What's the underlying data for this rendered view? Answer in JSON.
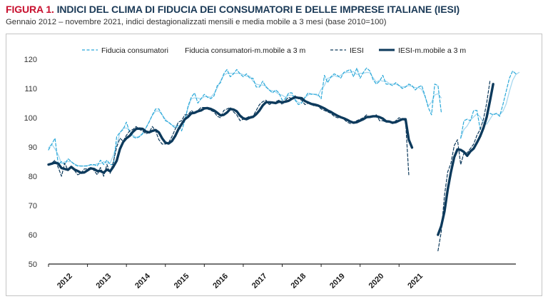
{
  "heading": {
    "figure_label": "FIGURA 1.",
    "title": "INDICI DEL CLIMA DI FIDUCIA DEI CONSUMATORI E DELLE IMPRESE ITALIANE (IESI)",
    "subtitle": "Gennaio 2012 – novembre 2021, indici destagionalizzati mensili e media mobile a 3 mesi (base 2010=100)"
  },
  "colors": {
    "title_red": "#c8102e",
    "title_blue": "#1b3a57",
    "consumers": "#29a8d9",
    "iesi": "#0d3a5c"
  },
  "chart_data": {
    "type": "line",
    "title": "INDICI DEL CLIMA DI FIDUCIA DEI CONSUMATORI E DELLE IMPRESE ITALIANE (IESI)",
    "ylim": [
      50,
      120
    ],
    "yticks": [
      50,
      60,
      70,
      80,
      90,
      100,
      110,
      120
    ],
    "year_labels": [
      "2012",
      "2013",
      "2014",
      "2015",
      "2016",
      "2017",
      "2018",
      "2019",
      "2020",
      "2021"
    ],
    "x_start": "2012-01",
    "x_end": "2021-11",
    "grid": false,
    "legend_position": "top",
    "series": [
      {
        "name": "Fiducia consumatori",
        "style": "dashed",
        "color": "#29a8d9",
        "values": [
          89,
          91,
          93,
          84,
          85,
          84,
          86,
          85,
          84,
          83.5,
          83.5,
          83.5,
          83.5,
          84,
          84,
          83.5,
          85.5,
          84,
          85.5,
          84,
          84,
          93.5,
          95,
          96,
          98.5,
          95,
          93.5,
          93,
          93.5,
          94.5,
          96.5,
          98.5,
          101,
          103,
          103,
          101,
          99,
          98.5,
          97.5,
          96.5,
          97.5,
          95.5,
          99,
          104,
          107,
          108.5,
          105,
          106.5,
          108,
          107,
          106.5,
          107.5,
          111,
          112,
          115,
          116.5,
          114,
          115,
          116.5,
          115,
          114,
          115,
          113.5,
          113.5,
          110.5,
          110.5,
          112.5,
          110.5,
          109.5,
          108.5,
          109.5,
          108.5,
          106,
          106.5,
          108.5,
          108.5,
          106,
          104.5,
          105,
          107,
          108.5,
          108,
          108,
          108,
          106.5,
          114.5,
          112,
          114,
          115,
          114.5,
          113.5,
          115.5,
          116,
          116.5,
          114,
          117,
          113.5,
          115.5,
          117,
          116,
          113,
          111.5,
          112.5,
          114.5,
          111.5,
          111.5,
          111,
          112,
          111,
          110,
          110.5,
          111.5,
          111,
          109.5,
          110.5,
          111,
          107.5,
          103.5,
          101,
          111.5,
          111,
          102,
          null,
          null,
          null,
          null,
          null,
          93,
          99,
          99.5,
          99,
          102.5,
          102.5,
          96,
          96.5,
          101,
          101.5,
          101,
          101.5,
          100.5,
          104.5,
          109,
          113.5,
          116,
          115
        ]
      },
      {
        "name": "Fiducia consumatori-m.mobile a 3 m",
        "style": "solid",
        "color": "#a7d8ef",
        "values": [
          89.7,
          91.0,
          89.3,
          87.3,
          84.3,
          85.0,
          85.0,
          85.0,
          84.2,
          83.7,
          83.5,
          83.5,
          83.7,
          83.8,
          83.8,
          84.3,
          84.3,
          85.0,
          84.5,
          84.5,
          87.2,
          90.8,
          94.8,
          96.5,
          96.5,
          95.7,
          94.0,
          93.3,
          93.7,
          94.8,
          96.5,
          98.7,
          100.8,
          102.3,
          102.3,
          101.0,
          99.5,
          98.3,
          97.5,
          97.2,
          96.5,
          97.3,
          99.5,
          103.5,
          106.5,
          106.8,
          106.7,
          106.5,
          107.2,
          107.2,
          107.0,
          108.3,
          110.2,
          112.7,
          114.5,
          115.2,
          115.2,
          115.2,
          115.2,
          115.2,
          114.7,
          114.2,
          114.2,
          112.5,
          111.5,
          111.2,
          111.2,
          110.8,
          109.5,
          109.2,
          108.8,
          108.0,
          107.7,
          107.0,
          107.7,
          107.7,
          106.3,
          105.2,
          105.3,
          106.8,
          107.8,
          108.2,
          108.0,
          107.5,
          109.7,
          111.0,
          113.5,
          113.7,
          114.5,
          114.0,
          114.5,
          115.3,
          115.5,
          115.5,
          115.8,
          114.8,
          115.2,
          115.2,
          115.5,
          115.4,
          113.7,
          112.2,
          112.8,
          112.5,
          112.5,
          111.7,
          111.5,
          111.5,
          111.0,
          110.5,
          110.7,
          111.0,
          110.7,
          110.3,
          110.3,
          109.7,
          107.3,
          104.0,
          105.3,
          107.8,
          108.2,
          106.8,
          null,
          null,
          null,
          null,
          null,
          93.0,
          96.0,
          97.2,
          99.2,
          100.3,
          101.3,
          100.3,
          98.3,
          97.8,
          99.5,
          101.2,
          101.3,
          101.0,
          102.2,
          104.7,
          109.0,
          112.8,
          114.8,
          115.5
        ]
      },
      {
        "name": "IESI",
        "style": "dashed",
        "color": "#0d3a5c",
        "values": [
          84,
          84.5,
          85.5,
          83,
          80,
          84.5,
          82,
          83,
          82,
          80.5,
          81,
          82.5,
          82.5,
          83,
          82,
          80.5,
          83,
          80,
          84,
          81,
          85,
          90,
          93,
          92,
          94,
          95.5,
          96,
          97,
          96,
          95.5,
          94.5,
          95,
          97,
          95.5,
          92.5,
          91,
          91,
          91.5,
          93.5,
          96,
          98.5,
          99,
          101,
          101,
          102.5,
          101.5,
          102.5,
          103.5,
          103.5,
          103,
          102.5,
          102,
          100.5,
          100,
          102.5,
          103,
          103.5,
          102,
          101,
          99,
          99.5,
          100,
          100.5,
          100.5,
          102.5,
          104.5,
          105.5,
          106,
          104.5,
          105,
          105.5,
          106,
          104.5,
          106,
          107,
          106.5,
          107.5,
          106.5,
          106,
          104.5,
          105,
          104.5,
          104,
          104,
          103,
          102.5,
          102,
          101.5,
          100.5,
          100,
          100,
          99.5,
          98.5,
          98,
          98.5,
          99,
          99.5,
          100,
          101,
          100,
          100.5,
          101,
          99,
          99,
          98.5,
          98.5,
          98,
          99,
          100,
          99.5,
          99,
          80.5,
          null,
          null,
          null,
          null,
          null,
          null,
          null,
          null,
          54.5,
          61,
          73.5,
          81.5,
          84.5,
          90.5,
          92.5,
          84,
          88,
          88,
          89.5,
          91,
          94,
          96,
          99.5,
          105,
          112.5
        ]
      },
      {
        "name": "IESI-m.mobile a 3 m",
        "style": "solid",
        "color": "#0d3a5c",
        "values": [
          84,
          84.3,
          84.7,
          84.3,
          82.8,
          82.5,
          82.2,
          83.2,
          82.3,
          81.8,
          81.2,
          81.3,
          82.0,
          82.7,
          82.5,
          81.8,
          81.8,
          81.2,
          82.3,
          81.7,
          83.3,
          85.3,
          89.3,
          91.7,
          93.0,
          93.8,
          95.2,
          96.2,
          96.3,
          96.2,
          95.3,
          95.0,
          95.5,
          95.8,
          95.0,
          93.0,
          91.5,
          91.2,
          92.0,
          93.7,
          96.0,
          97.8,
          99.5,
          100.3,
          101.5,
          101.7,
          102.2,
          102.5,
          103.2,
          103.3,
          103.0,
          102.5,
          101.7,
          100.8,
          101.0,
          101.8,
          103.0,
          102.8,
          102.2,
          100.7,
          99.8,
          99.5,
          100.0,
          100.3,
          101.2,
          102.5,
          104.2,
          105.3,
          105.3,
          105.2,
          105.0,
          105.5,
          105.3,
          105.5,
          105.8,
          106.5,
          107.0,
          106.8,
          106.7,
          105.7,
          105.2,
          104.7,
          104.5,
          104.2,
          103.7,
          103.2,
          102.5,
          102.0,
          101.3,
          100.7,
          100.2,
          99.8,
          99.3,
          98.7,
          98.3,
          98.5,
          99.0,
          99.5,
          100.2,
          100.3,
          100.5,
          100.5,
          100.2,
          99.7,
          98.8,
          98.7,
          98.3,
          98.5,
          99.0,
          99.5,
          99.5,
          92.5,
          89.8,
          null,
          null,
          null,
          null,
          null,
          null,
          null,
          60.0,
          63.0,
          68.0,
          75.5,
          81.5,
          86.5,
          89.2,
          89.0,
          88.3,
          87.0,
          88.5,
          89.5,
          91.5,
          93.7,
          96.5,
          100.2,
          105.7,
          111.5
        ]
      }
    ]
  }
}
